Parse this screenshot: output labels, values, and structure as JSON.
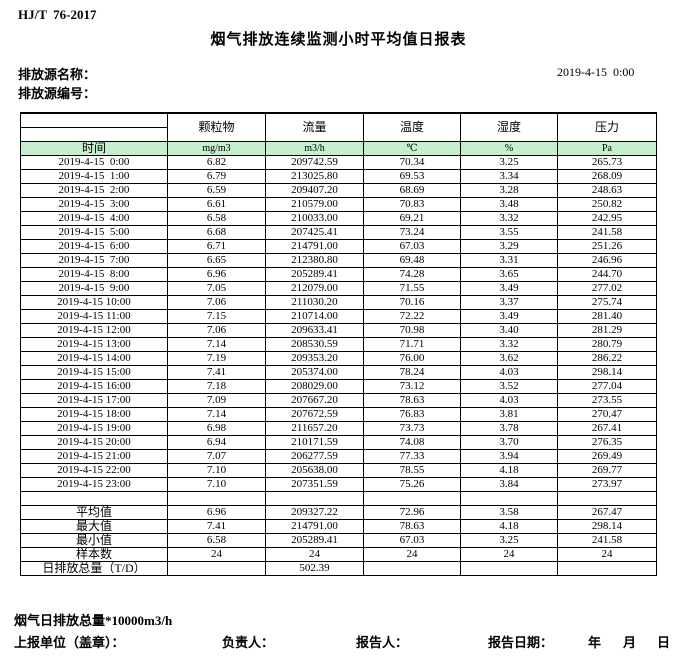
{
  "header": {
    "standard": "HJ/T  76-2017",
    "title": "烟气排放连续监测小时平均值日报表",
    "source_name_label": "排放源名称：",
    "source_code_label": "排放源编号：",
    "datetime": "2019-4-15  0:00"
  },
  "table": {
    "time_header": "时间",
    "columns": [
      {
        "name": "颗粒物",
        "unit": "mg/m3"
      },
      {
        "name": "流量",
        "unit": "m3/h"
      },
      {
        "name": "温度",
        "unit": "℃"
      },
      {
        "name": "湿度",
        "unit": "%"
      },
      {
        "name": "压力",
        "unit": "Pa"
      }
    ],
    "rows": [
      {
        "time": "2019-4-15  0:00",
        "values": [
          "6.82",
          "209742.59",
          "70.34",
          "3.25",
          "265.73"
        ]
      },
      {
        "time": "2019-4-15  1:00",
        "values": [
          "6.79",
          "213025.80",
          "69.53",
          "3.34",
          "268.09"
        ]
      },
      {
        "time": "2019-4-15  2:00",
        "values": [
          "6.59",
          "209407.20",
          "68.69",
          "3.28",
          "248.63"
        ]
      },
      {
        "time": "2019-4-15  3:00",
        "values": [
          "6.61",
          "210579.00",
          "70.83",
          "3.48",
          "250.82"
        ]
      },
      {
        "time": "2019-4-15  4:00",
        "values": [
          "6.58",
          "210033.00",
          "69.21",
          "3.32",
          "242.95"
        ]
      },
      {
        "time": "2019-4-15  5:00",
        "values": [
          "6.68",
          "207425.41",
          "73.24",
          "3.55",
          "241.58"
        ]
      },
      {
        "time": "2019-4-15  6:00",
        "values": [
          "6.71",
          "214791.00",
          "67.03",
          "3.29",
          "251.26"
        ]
      },
      {
        "time": "2019-4-15  7:00",
        "values": [
          "6.65",
          "212380.80",
          "69.48",
          "3.31",
          "246.96"
        ]
      },
      {
        "time": "2019-4-15  8:00",
        "values": [
          "6.96",
          "205289.41",
          "74.28",
          "3.65",
          "244.70"
        ]
      },
      {
        "time": "2019-4-15  9:00",
        "values": [
          "7.05",
          "212079.00",
          "71.55",
          "3.49",
          "277.02"
        ]
      },
      {
        "time": "2019-4-15 10:00",
        "values": [
          "7.06",
          "211030.20",
          "70.16",
          "3.37",
          "275.74"
        ]
      },
      {
        "time": "2019-4-15 11:00",
        "values": [
          "7.15",
          "210714.00",
          "72.22",
          "3.49",
          "281.40"
        ]
      },
      {
        "time": "2019-4-15 12:00",
        "values": [
          "7.06",
          "209633.41",
          "70.98",
          "3.40",
          "281.29"
        ]
      },
      {
        "time": "2019-4-15 13:00",
        "values": [
          "7.14",
          "208530.59",
          "71.71",
          "3.32",
          "280.79"
        ]
      },
      {
        "time": "2019-4-15 14:00",
        "values": [
          "7.19",
          "209353.20",
          "76.00",
          "3.62",
          "286.22"
        ]
      },
      {
        "time": "2019-4-15 15:00",
        "values": [
          "7.41",
          "205374.00",
          "78.24",
          "4.03",
          "298.14"
        ]
      },
      {
        "time": "2019-4-15 16:00",
        "values": [
          "7.18",
          "208029.00",
          "73.12",
          "3.52",
          "277.04"
        ]
      },
      {
        "time": "2019-4-15 17:00",
        "values": [
          "7.09",
          "207667.20",
          "78.63",
          "4.03",
          "273.55"
        ]
      },
      {
        "time": "2019-4-15 18:00",
        "values": [
          "7.14",
          "207672.59",
          "76.83",
          "3.81",
          "270.47"
        ]
      },
      {
        "time": "2019-4-15 19:00",
        "values": [
          "6.98",
          "211657.20",
          "73.73",
          "3.78",
          "267.41"
        ]
      },
      {
        "time": "2019-4-15 20:00",
        "values": [
          "6.94",
          "210171.59",
          "74.08",
          "3.70",
          "276.35"
        ]
      },
      {
        "time": "2019-4-15 21:00",
        "values": [
          "7.07",
          "206277.59",
          "77.33",
          "3.94",
          "269.49"
        ]
      },
      {
        "time": "2019-4-15 22:00",
        "values": [
          "7.10",
          "205638.00",
          "78.55",
          "4.18",
          "269.77"
        ]
      },
      {
        "time": "2019-4-15 23:00",
        "values": [
          "7.10",
          "207351.59",
          "75.26",
          "3.84",
          "273.97"
        ]
      }
    ],
    "summary": [
      {
        "label": "平均值",
        "values": [
          "6.96",
          "209327.22",
          "72.96",
          "3.58",
          "267.47"
        ]
      },
      {
        "label": "最大值",
        "values": [
          "7.41",
          "214791.00",
          "78.63",
          "4.18",
          "298.14"
        ]
      },
      {
        "label": "最小值",
        "values": [
          "6.58",
          "205289.41",
          "67.03",
          "3.25",
          "241.58"
        ]
      },
      {
        "label": "样本数",
        "values": [
          "24",
          "24",
          "24",
          "24",
          "24"
        ]
      },
      {
        "label": "日排放总量（T/D）",
        "values": [
          "",
          "502.39",
          "",
          "",
          ""
        ]
      }
    ]
  },
  "footer": {
    "note": "烟气日排放总量*10000m3/h",
    "report_unit_label": "上报单位（盖章）：",
    "responsible_label": "负责人：",
    "reporter_label": "报告人：",
    "report_date_label": "报告日期：",
    "year_label": "年",
    "month_label": "月",
    "day_label": "日"
  },
  "colors": {
    "header_row_green": "#c6efce",
    "border": "#000000",
    "text": "#000000",
    "background": "#ffffff"
  }
}
